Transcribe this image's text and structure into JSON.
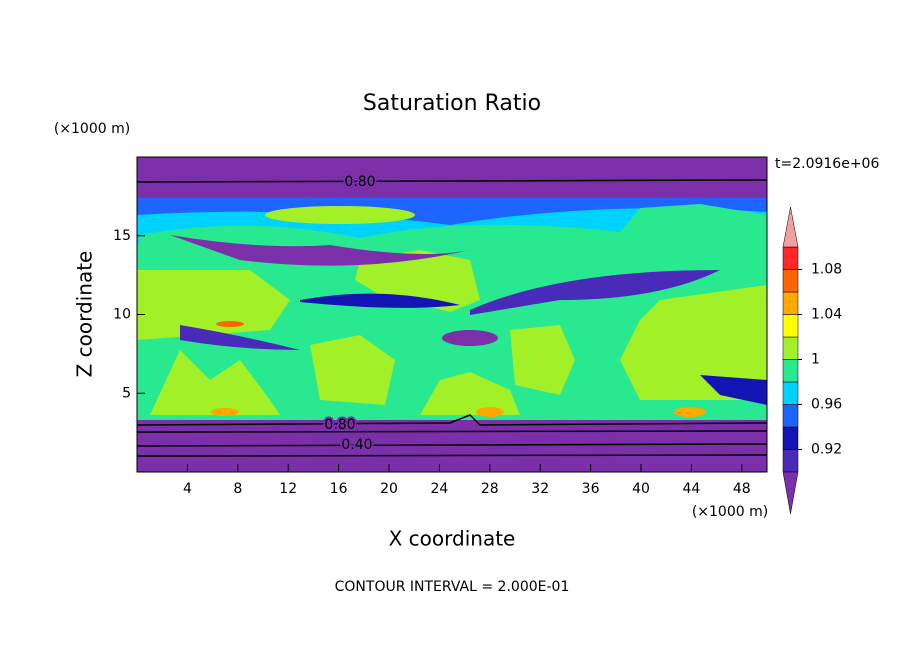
{
  "chart_data": {
    "type": "contour",
    "title": "Saturation Ratio",
    "x_label": "X coordinate",
    "y_label": "Z coordinate",
    "x_unit": "(×1000 m)",
    "y_unit": "(×1000 m)",
    "time_label": "t=2.0916e+06",
    "footer": "CONTOUR INTERVAL = 2.000E-01",
    "contour_labels": [
      "0.80",
      "0.80",
      "0.40"
    ],
    "xlim": [
      0,
      50
    ],
    "xticks": [
      4,
      8,
      12,
      16,
      20,
      24,
      28,
      32,
      36,
      40,
      44,
      48
    ],
    "ylim": [
      0,
      20
    ],
    "yticks": [
      5,
      10,
      15
    ],
    "colorbar": {
      "levels": [
        0.9,
        0.92,
        0.94,
        0.96,
        0.98,
        1,
        1.02,
        1.04,
        1.06,
        1.08,
        1.1
      ],
      "ticks": [
        0.92,
        0.96,
        1,
        1.04,
        1.08
      ],
      "colors": [
        "#7b2fa8",
        "#4a2ab8",
        "#1414b4",
        "#1e64ff",
        "#00d2ff",
        "#28e890",
        "#a2f028",
        "#ffff00",
        "#ffa800",
        "#ff6400",
        "#ff2828",
        "#f0a0a0"
      ]
    }
  }
}
